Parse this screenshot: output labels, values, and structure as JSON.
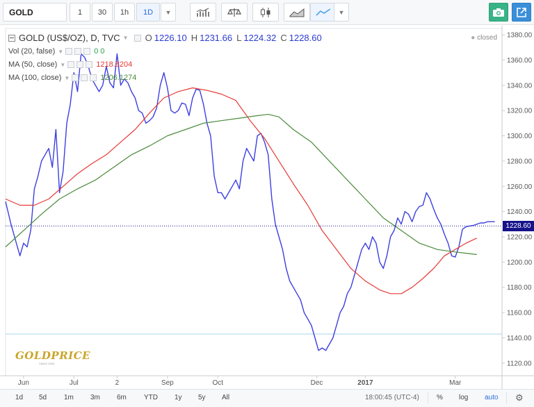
{
  "toolbar": {
    "symbol": "GOLD",
    "intervals": [
      "1",
      "30",
      "1h",
      "1D"
    ],
    "active_interval": "1D",
    "icons": [
      "bar-chart-icon",
      "compare-icon",
      "candlestick-icon",
      "area-chart-icon",
      "line-chart-icon",
      "camera-icon",
      "popout-icon"
    ],
    "colors": {
      "camera": "#38b387",
      "popout": "#3a8fd9"
    }
  },
  "legend": {
    "title": "GOLD (US$/OZ), D, TVC",
    "ohlc": {
      "O": "1226.10",
      "H": "1231.66",
      "L": "1224.32",
      "C": "1228.60"
    },
    "vol_label": "Vol (20, false)",
    "vol_values": "0 0",
    "ma50_label": "MA (50, close)",
    "ma50_value": "1218.8204",
    "ma100_label": "MA (100, close)",
    "ma100_value": "1206.1274",
    "status": "closed"
  },
  "chart_data": {
    "type": "line",
    "title": "GOLD (US$/OZ), D, TVC",
    "ylim": [
      1110,
      1385
    ],
    "y_ticks": [
      1120,
      1140,
      1160,
      1180,
      1200,
      1220,
      1240,
      1260,
      1280,
      1300,
      1320,
      1340,
      1360,
      1380
    ],
    "y_tick_labels": [
      "1120.00",
      "1140.00",
      "1160.00",
      "1180.00",
      "1200.00",
      "1220.00",
      "1240.00",
      "1260.00",
      "1280.00",
      "1300.00",
      "1320.00",
      "1340.00",
      "1360.00",
      "1380.00"
    ],
    "x_range": [
      0,
      276
    ],
    "x_ticks": [
      {
        "label": "Jun",
        "x": 10
      },
      {
        "label": "Jul",
        "x": 38
      },
      {
        "label": "2",
        "x": 62
      },
      {
        "label": "Sep",
        "x": 90
      },
      {
        "label": "Oct",
        "x": 118
      },
      {
        "label": "Dec",
        "x": 173
      },
      {
        "label": "2017",
        "x": 200
      },
      {
        "label": "Mar",
        "x": 250
      }
    ],
    "last_price": 1228.6,
    "last_price_label": "1228.60",
    "reference_level": 1143,
    "grid": false,
    "colors": {
      "price": "#3b3fe0",
      "ma50": "#e53935",
      "ma100": "#4a8a3a",
      "last_line": "#15128a",
      "ref_line": "#a8d4ee"
    },
    "series": [
      {
        "name": "GOLD (US$/OZ)",
        "x": [
          0,
          3,
          6,
          8,
          10,
          12,
          14,
          16,
          18,
          20,
          22,
          24,
          26,
          28,
          30,
          32,
          34,
          36,
          38,
          40,
          42,
          44,
          46,
          48,
          50,
          52,
          54,
          56,
          58,
          60,
          62,
          64,
          66,
          68,
          70,
          72,
          74,
          76,
          78,
          80,
          82,
          84,
          86,
          88,
          90,
          92,
          94,
          96,
          98,
          100,
          102,
          104,
          106,
          108,
          110,
          112,
          114,
          116,
          118,
          120,
          122,
          124,
          126,
          128,
          130,
          132,
          134,
          136,
          138,
          140,
          142,
          144,
          146,
          148,
          150,
          152,
          154,
          156,
          158,
          160,
          162,
          164,
          166,
          168,
          170,
          172,
          174,
          176,
          178,
          180,
          182,
          184,
          186,
          188,
          190,
          192,
          194,
          196,
          198,
          200,
          202,
          204,
          206,
          208,
          210,
          212,
          214,
          216,
          218,
          220,
          222,
          224,
          226,
          228,
          230,
          232,
          234,
          236,
          238,
          240,
          242,
          244,
          246,
          248,
          250,
          252,
          254,
          256,
          258,
          260,
          262,
          264,
          266,
          268,
          270,
          272
        ],
        "values": [
          1248,
          1230,
          1215,
          1205,
          1215,
          1212,
          1225,
          1258,
          1268,
          1280,
          1285,
          1290,
          1275,
          1305,
          1255,
          1272,
          1310,
          1325,
          1350,
          1335,
          1365,
          1362,
          1355,
          1345,
          1340,
          1335,
          1340,
          1355,
          1342,
          1338,
          1365,
          1340,
          1345,
          1342,
          1335,
          1330,
          1320,
          1318,
          1310,
          1312,
          1315,
          1322,
          1340,
          1350,
          1338,
          1320,
          1318,
          1320,
          1326,
          1325,
          1316,
          1330,
          1337,
          1336,
          1325,
          1310,
          1300,
          1268,
          1255,
          1255,
          1250,
          1255,
          1260,
          1265,
          1258,
          1280,
          1290,
          1285,
          1280,
          1300,
          1302,
          1295,
          1285,
          1250,
          1230,
          1220,
          1210,
          1195,
          1185,
          1180,
          1175,
          1170,
          1160,
          1155,
          1150,
          1140,
          1130,
          1132,
          1130,
          1135,
          1140,
          1150,
          1160,
          1165,
          1175,
          1180,
          1190,
          1200,
          1210,
          1215,
          1210,
          1220,
          1215,
          1200,
          1195,
          1205,
          1220,
          1225,
          1235,
          1230,
          1240,
          1238,
          1232,
          1240,
          1244,
          1245,
          1255,
          1250,
          1242,
          1235,
          1230,
          1222,
          1215,
          1205,
          1204,
          1212,
          1226,
          1228,
          1228.6,
          1229,
          1230,
          1231,
          1231,
          1232,
          1232,
          1232
        ]
      },
      {
        "name": "MA (50, close)",
        "x": [
          0,
          8,
          16,
          24,
          32,
          40,
          48,
          56,
          64,
          72,
          80,
          88,
          96,
          104,
          112,
          120,
          128,
          136,
          144,
          152,
          160,
          168,
          176,
          184,
          192,
          200,
          208,
          214,
          220,
          226,
          232,
          238,
          244,
          250,
          256,
          262
        ],
        "values": [
          1250,
          1245,
          1245,
          1250,
          1260,
          1270,
          1278,
          1285,
          1295,
          1305,
          1318,
          1330,
          1335,
          1338,
          1336,
          1333,
          1328,
          1312,
          1298,
          1280,
          1262,
          1245,
          1225,
          1210,
          1195,
          1185,
          1178,
          1175,
          1175,
          1180,
          1187,
          1195,
          1205,
          1210,
          1215,
          1219
        ]
      },
      {
        "name": "MA (100, close)",
        "x": [
          0,
          10,
          20,
          30,
          40,
          50,
          60,
          70,
          80,
          90,
          100,
          110,
          120,
          130,
          140,
          146,
          152,
          160,
          170,
          180,
          190,
          200,
          210,
          220,
          230,
          240,
          250,
          256,
          262
        ],
        "values": [
          1212,
          1225,
          1238,
          1250,
          1258,
          1265,
          1275,
          1285,
          1292,
          1300,
          1305,
          1310,
          1312,
          1314,
          1316,
          1317,
          1315,
          1305,
          1295,
          1280,
          1265,
          1250,
          1235,
          1225,
          1215,
          1210,
          1208,
          1207,
          1206
        ]
      }
    ]
  },
  "logo": {
    "text": "GOLDPRICE",
    "sub": "SINCE 2000"
  },
  "bottombar": {
    "ranges": [
      "1d",
      "5d",
      "1m",
      "3m",
      "6m",
      "YTD",
      "1y",
      "5y",
      "All"
    ],
    "clock": "18:00:45 (UTC-4)",
    "right": [
      "%",
      "log",
      "auto"
    ],
    "gear_icon": "gear-icon"
  }
}
